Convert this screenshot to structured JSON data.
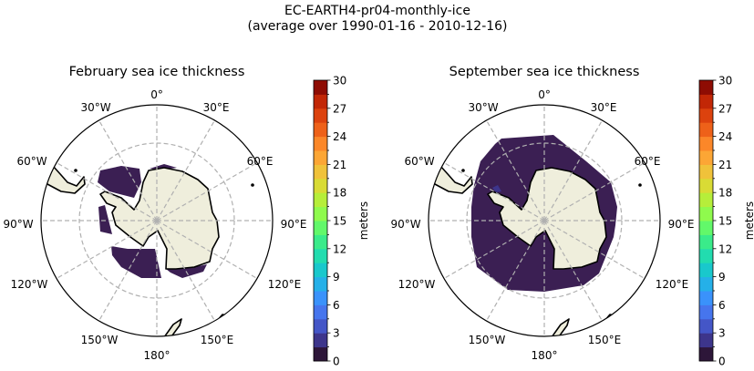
{
  "figure": {
    "title_line1": "EC-EARTH4-pr04-monthly-ice",
    "title_line2": "(average over 1990-01-16 - 2010-12-16)"
  },
  "colors": {
    "land": "#efeedc",
    "coastline": "#000000",
    "grid": "#b0b0b0",
    "sea_ice_low": "#3b1f53"
  },
  "chart_data": [
    {
      "type": "heatmap",
      "projection": "south-polar-stereographic",
      "title": "February sea ice thickness",
      "variable": "sea ice thickness",
      "extent_description_visible": "ice in Weddell, Bellingshausen, Amundsen/Ross sectors and along East Antarctic coast",
      "value_range_shown": [
        0,
        1.5
      ],
      "colorbar": {
        "label": "meters",
        "min": 0,
        "max": 30,
        "ticks": [
          "0",
          "3",
          "6",
          "9",
          "12",
          "15",
          "18",
          "21",
          "24",
          "27",
          "30"
        ],
        "levels": 20
      }
    },
    {
      "type": "heatmap",
      "projection": "south-polar-stereographic",
      "title": "September sea ice thickness",
      "variable": "sea ice thickness",
      "extent_description_visible": "continuous ring of ice around Antarctica",
      "value_range_shown": [
        0,
        3
      ],
      "colorbar": {
        "label": "meters",
        "min": 0,
        "max": 30,
        "ticks": [
          "0",
          "3",
          "6",
          "9",
          "12",
          "15",
          "18",
          "21",
          "24",
          "27",
          "30"
        ],
        "levels": 20
      }
    }
  ],
  "colormap": [
    "#2d1639",
    "#3d358b",
    "#4456c7",
    "#4675ed",
    "#3a92fb",
    "#25b0e8",
    "#19c8cc",
    "#22dcaf",
    "#3aeb8a",
    "#62f86a",
    "#8ffa4d",
    "#b6ee3a",
    "#d9db35",
    "#f0c23a",
    "#fca635",
    "#fb8729",
    "#ee6119",
    "#dc420e",
    "#c22706",
    "#8e0c03"
  ],
  "map_labels": {
    "lon_0": "0°",
    "lon_30e": "30°E",
    "lon_60e": "60°E",
    "lon_90e": "90°E",
    "lon_120e": "120°E",
    "lon_150e": "150°E",
    "lon_180": "180°",
    "lon_150w": "150°W",
    "lon_120w": "120°W",
    "lon_90w": "90°W",
    "lon_60w": "60°W",
    "lon_30w": "30°W"
  }
}
